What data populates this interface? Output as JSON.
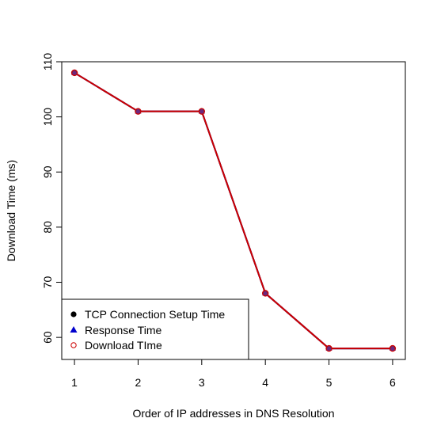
{
  "chart_data": {
    "type": "line",
    "title": "",
    "xlabel": "Order of IP addresses in DNS Resolution",
    "ylabel": "Download Time (ms)",
    "x": [
      1,
      2,
      3,
      4,
      5,
      6
    ],
    "xlim": [
      0.8,
      6.2
    ],
    "ylim": [
      56,
      110
    ],
    "xticks": [
      1,
      2,
      3,
      4,
      5,
      6
    ],
    "yticks": [
      60,
      70,
      80,
      90,
      100,
      110
    ],
    "grid": false,
    "legend_position": "bottom-left",
    "series": [
      {
        "name": "TCP Connection Setup Time",
        "values": [
          108,
          101,
          101,
          68,
          58,
          58
        ],
        "color": "#000000",
        "marker": "filled-circle"
      },
      {
        "name": "Response Time",
        "values": [
          108,
          101,
          101,
          68,
          58,
          58
        ],
        "color": "#0000cd",
        "marker": "filled-triangle"
      },
      {
        "name": "Download TIme",
        "values": [
          108,
          101,
          101,
          68,
          58,
          58
        ],
        "color": "#cc0000",
        "marker": "open-circle"
      }
    ]
  }
}
